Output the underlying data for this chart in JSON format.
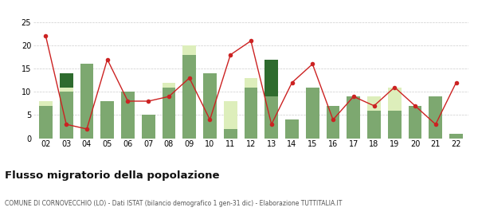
{
  "years": [
    "02",
    "03",
    "04",
    "05",
    "06",
    "07",
    "08",
    "09",
    "10",
    "11",
    "12",
    "13",
    "14",
    "15",
    "16",
    "17",
    "18",
    "19",
    "20",
    "21",
    "22"
  ],
  "iscritti_altri_comuni": [
    7,
    10,
    16,
    8,
    10,
    5,
    11,
    18,
    14,
    2,
    11,
    9,
    4,
    11,
    7,
    9,
    6,
    6,
    7,
    9,
    1
  ],
  "iscritti_estero": [
    1,
    1,
    0,
    0,
    0,
    0,
    1,
    2,
    0,
    6,
    2,
    0,
    0,
    0,
    0,
    0,
    3,
    5,
    0,
    0,
    0
  ],
  "iscritti_altri": [
    0,
    3,
    0,
    0,
    0,
    0,
    0,
    0,
    0,
    0,
    0,
    8,
    0,
    0,
    0,
    0,
    0,
    0,
    0,
    0,
    0
  ],
  "cancellati": [
    22,
    3,
    2,
    17,
    8,
    8,
    9,
    13,
    4,
    18,
    21,
    3,
    12,
    16,
    4,
    9,
    7,
    11,
    7,
    3,
    12
  ],
  "color_altri_comuni": "#7da870",
  "color_estero": "#ddeebb",
  "color_altri": "#2e6b2e",
  "color_cancellati": "#cc2222",
  "bg_color": "#ffffff",
  "grid_color": "#cccccc",
  "ylim": [
    0,
    25
  ],
  "yticks": [
    0,
    5,
    10,
    15,
    20,
    25
  ],
  "title": "Flusso migratorio della popolazione",
  "subtitle": "COMUNE DI CORNOVECCHIO (LO) - Dati ISTAT (bilancio demografico 1 gen-31 dic) - Elaborazione TUTTITALIA.IT"
}
